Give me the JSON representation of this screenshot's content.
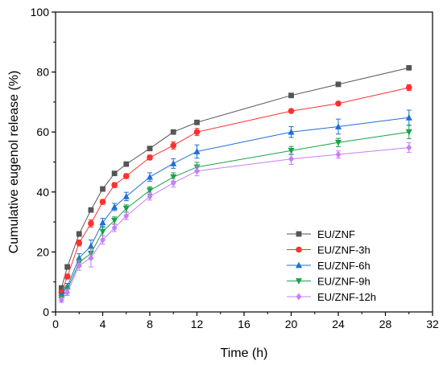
{
  "chart_data": {
    "type": "line",
    "xlabel": "Time (h)",
    "ylabel": "Cumulative eugenol release (%)",
    "xlim": [
      0,
      32
    ],
    "ylim": [
      0,
      100
    ],
    "xticks": [
      0,
      4,
      8,
      12,
      16,
      20,
      24,
      28,
      32
    ],
    "yticks": [
      0,
      20,
      40,
      60,
      80,
      100
    ],
    "grid": false,
    "legend_position": "bottom-right",
    "x": [
      0.5,
      1,
      2,
      3,
      4,
      5,
      6,
      8,
      10,
      12,
      20,
      24,
      30
    ],
    "series": [
      {
        "name": "EU/ZNF",
        "color": "#555555",
        "marker": "square",
        "values": [
          8.0,
          15.0,
          26.0,
          34.0,
          41.0,
          46.2,
          49.3,
          54.5,
          60.0,
          63.2,
          72.2,
          75.9,
          81.4
        ],
        "errors": [
          0.6,
          0.8,
          0.8,
          0.6,
          0.6,
          0.6,
          0.5,
          0.5,
          0.5,
          0.5,
          0.5,
          0.5,
          0.6
        ]
      },
      {
        "name": "EU/ZNF-3h",
        "color": "#ff3030",
        "marker": "circle",
        "values": [
          6.5,
          11.8,
          23.0,
          29.5,
          36.7,
          42.3,
          45.3,
          51.5,
          55.5,
          60.0,
          67.0,
          69.5,
          74.8
        ],
        "errors": [
          0.6,
          0.8,
          1.0,
          1.2,
          0.8,
          0.8,
          0.8,
          0.8,
          1.2,
          1.2,
          0.6,
          0.5,
          1.0
        ]
      },
      {
        "name": "EU/ZNF-6h",
        "color": "#1f6fd6",
        "marker": "triangle-up",
        "values": [
          5.5,
          8.5,
          18.0,
          22.0,
          29.8,
          35.0,
          38.5,
          45.0,
          49.5,
          53.5,
          60.0,
          61.8,
          64.8
        ],
        "errors": [
          0.8,
          1.0,
          1.4,
          2.0,
          1.4,
          1.2,
          1.4,
          1.4,
          1.6,
          2.2,
          1.8,
          2.5,
          2.5
        ]
      },
      {
        "name": "EU/ZNF-9h",
        "color": "#1aa34a",
        "marker": "triangle-down",
        "values": [
          4.8,
          7.5,
          16.5,
          19.5,
          26.8,
          30.5,
          34.5,
          40.5,
          45.0,
          48.3,
          53.8,
          56.5,
          60.0
        ],
        "errors": [
          0.8,
          1.2,
          1.4,
          1.8,
          1.4,
          1.2,
          1.2,
          1.2,
          1.4,
          1.6,
          1.4,
          1.4,
          2.2
        ]
      },
      {
        "name": "EU/ZNF-12h",
        "color": "#c77dff",
        "marker": "diamond",
        "values": [
          4.0,
          6.5,
          15.5,
          18.0,
          24.0,
          28.0,
          32.0,
          38.5,
          43.0,
          47.0,
          51.0,
          52.5,
          54.8
        ],
        "errors": [
          0.8,
          1.0,
          1.6,
          3.0,
          1.4,
          1.2,
          1.2,
          1.2,
          1.4,
          1.6,
          1.8,
          1.2,
          1.6
        ]
      }
    ]
  }
}
